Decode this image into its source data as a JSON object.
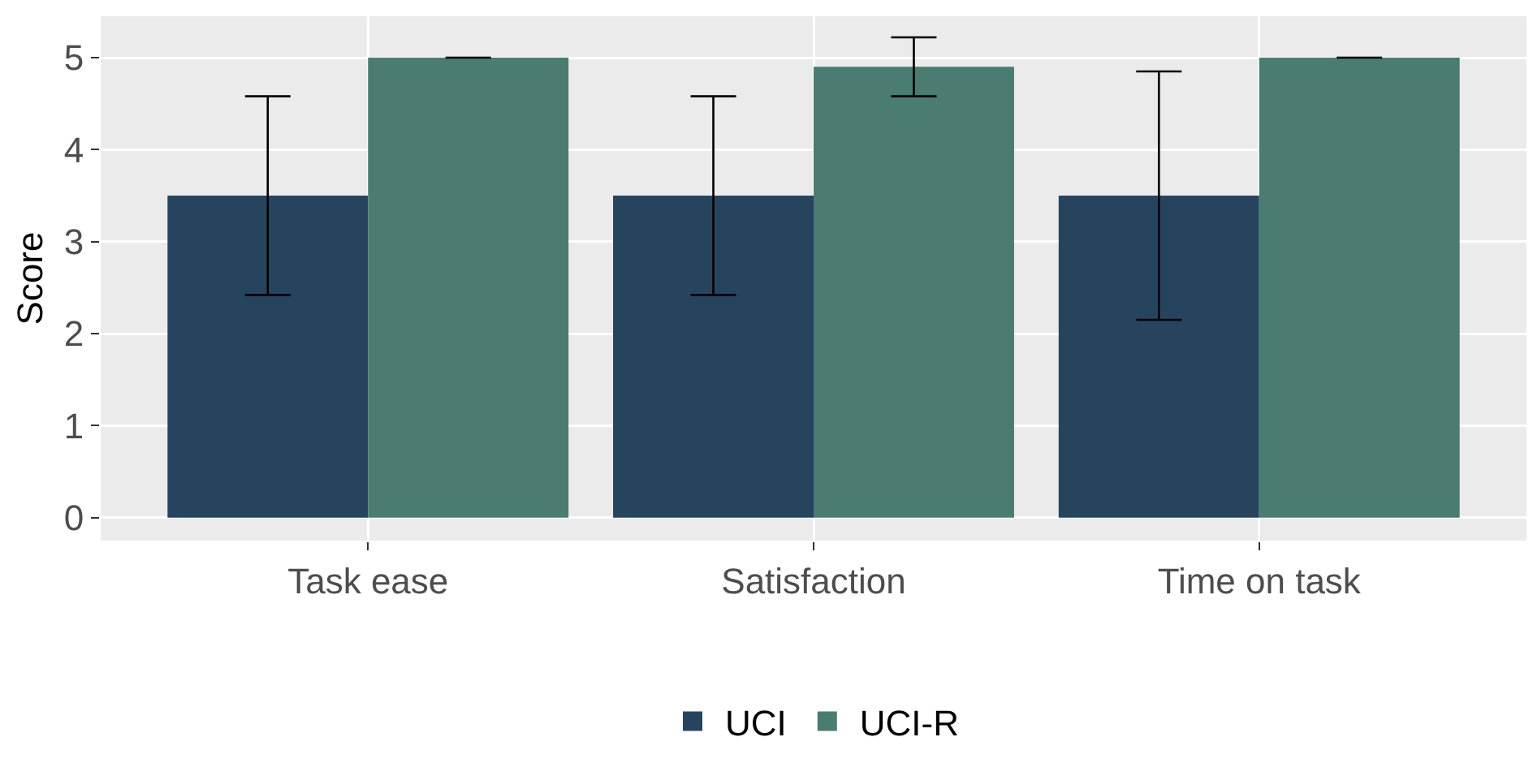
{
  "chart_data": {
    "type": "bar",
    "ylabel": "Score",
    "categories": [
      "Task ease",
      "Satisfaction",
      "Time on task"
    ],
    "series": [
      {
        "name": "UCI",
        "color": "#27445e",
        "values": [
          3.5,
          3.5,
          3.5
        ],
        "errors": [
          [
            2.42,
            4.58
          ],
          [
            2.42,
            4.58
          ],
          [
            2.15,
            4.85
          ]
        ]
      },
      {
        "name": "UCI-R",
        "color": "#4a7c72",
        "values": [
          5,
          4.9,
          5
        ],
        "errors": [
          [
            5,
            5
          ],
          [
            4.58,
            5.22
          ],
          [
            5,
            5
          ]
        ]
      }
    ],
    "ylim": [
      -0.25,
      5.45
    ],
    "yticks": [
      0,
      1,
      2,
      3,
      4,
      5
    ],
    "grid": true,
    "legend": "bottom"
  }
}
